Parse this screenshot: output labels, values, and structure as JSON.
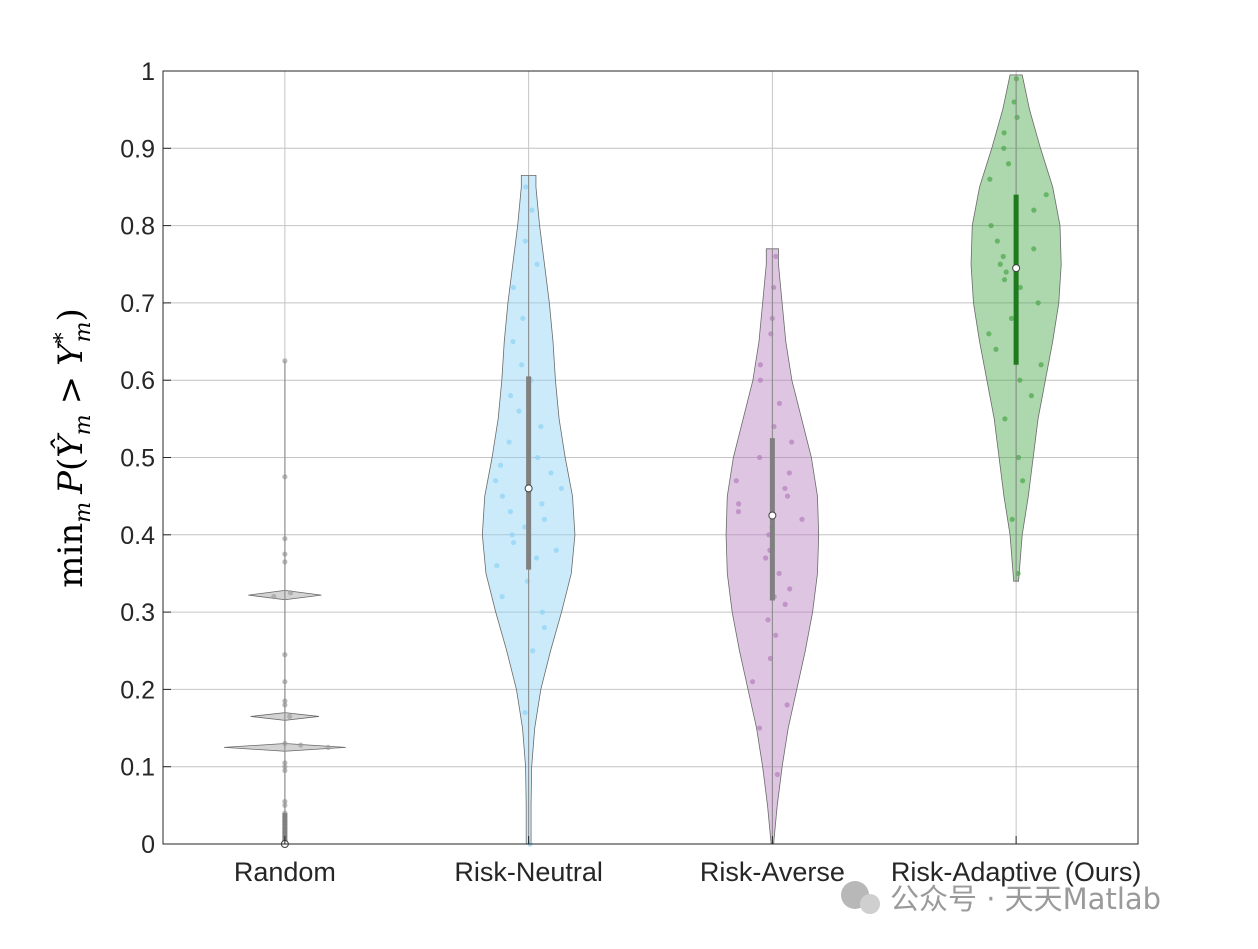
{
  "chart_data": {
    "type": "violin",
    "categories": [
      "Random",
      "Risk-Neutral",
      "Risk-Averse",
      "Risk-Adaptive (Ours)"
    ],
    "ylabel_parts": {
      "min": "min",
      "sub_m": "m",
      "P": "P",
      "open": "(",
      "Yhat": "Ŷ",
      "gt": ">",
      "Y": "Y",
      "star": "*",
      "close": ")"
    },
    "ylim": [
      0,
      1
    ],
    "yticks": [
      "0",
      "0.1",
      "0.2",
      "0.3",
      "0.4",
      "0.5",
      "0.6",
      "0.7",
      "0.8",
      "0.9",
      "1"
    ],
    "grid": true,
    "series": [
      {
        "color": "#9e9e9e",
        "median": 0.0,
        "iqr": [
          0.0,
          0.04
        ],
        "whisker": [
          0.0,
          0.625
        ],
        "density": [
          [
            0.0,
            0.0
          ],
          [
            0.12,
            0.0
          ],
          [
            0.125,
            0.5
          ],
          [
            0.13,
            0.0
          ],
          [
            0.16,
            0.0
          ],
          [
            0.165,
            0.28
          ],
          [
            0.17,
            0.0
          ],
          [
            0.316,
            0.0
          ],
          [
            0.322,
            0.3
          ],
          [
            0.328,
            0.0
          ],
          [
            0.625,
            0.0
          ]
        ],
        "points": [
          0.0,
          0.005,
          0.01,
          0.015,
          0.02,
          0.025,
          0.03,
          0.035,
          0.04,
          0.05,
          0.055,
          0.095,
          0.1,
          0.105,
          0.125,
          0.128,
          0.13,
          0.165,
          0.18,
          0.185,
          0.21,
          0.245,
          0.32,
          0.325,
          0.365,
          0.375,
          0.395,
          0.475,
          0.625
        ]
      },
      {
        "color": "#8dd3f5",
        "median": 0.46,
        "iqr": [
          0.355,
          0.605
        ],
        "whisker": [
          0.0,
          0.865
        ],
        "density": [
          [
            0.0,
            0.02
          ],
          [
            0.05,
            0.02
          ],
          [
            0.1,
            0.025
          ],
          [
            0.15,
            0.05
          ],
          [
            0.2,
            0.1
          ],
          [
            0.25,
            0.18
          ],
          [
            0.3,
            0.27
          ],
          [
            0.35,
            0.35
          ],
          [
            0.4,
            0.38
          ],
          [
            0.45,
            0.36
          ],
          [
            0.5,
            0.3
          ],
          [
            0.55,
            0.25
          ],
          [
            0.6,
            0.22
          ],
          [
            0.65,
            0.2
          ],
          [
            0.7,
            0.17
          ],
          [
            0.75,
            0.13
          ],
          [
            0.8,
            0.09
          ],
          [
            0.85,
            0.06
          ],
          [
            0.865,
            0.06
          ]
        ],
        "points": [
          0.0,
          0.17,
          0.25,
          0.28,
          0.3,
          0.32,
          0.34,
          0.36,
          0.37,
          0.38,
          0.39,
          0.4,
          0.41,
          0.42,
          0.43,
          0.44,
          0.45,
          0.46,
          0.47,
          0.48,
          0.49,
          0.5,
          0.52,
          0.54,
          0.56,
          0.58,
          0.6,
          0.62,
          0.65,
          0.68,
          0.72,
          0.75,
          0.78,
          0.82,
          0.85
        ]
      },
      {
        "color": "#b57fbe",
        "median": 0.425,
        "iqr": [
          0.315,
          0.525
        ],
        "whisker": [
          0.0,
          0.77
        ],
        "density": [
          [
            0.0,
            0.01
          ],
          [
            0.05,
            0.04
          ],
          [
            0.1,
            0.08
          ],
          [
            0.15,
            0.13
          ],
          [
            0.2,
            0.2
          ],
          [
            0.25,
            0.27
          ],
          [
            0.3,
            0.33
          ],
          [
            0.35,
            0.37
          ],
          [
            0.4,
            0.38
          ],
          [
            0.45,
            0.37
          ],
          [
            0.5,
            0.32
          ],
          [
            0.55,
            0.24
          ],
          [
            0.6,
            0.16
          ],
          [
            0.65,
            0.11
          ],
          [
            0.7,
            0.08
          ],
          [
            0.75,
            0.05
          ],
          [
            0.77,
            0.05
          ]
        ],
        "points": [
          0.09,
          0.15,
          0.18,
          0.21,
          0.24,
          0.27,
          0.29,
          0.31,
          0.32,
          0.33,
          0.35,
          0.37,
          0.38,
          0.4,
          0.41,
          0.42,
          0.43,
          0.44,
          0.45,
          0.46,
          0.47,
          0.48,
          0.5,
          0.52,
          0.54,
          0.57,
          0.6,
          0.62,
          0.66,
          0.68,
          0.72,
          0.76
        ]
      },
      {
        "color": "#4aa64a",
        "median": 0.745,
        "iqr": [
          0.62,
          0.84
        ],
        "whisker": [
          0.34,
          0.995
        ],
        "density": [
          [
            0.34,
            0.02
          ],
          [
            0.4,
            0.05
          ],
          [
            0.45,
            0.1
          ],
          [
            0.5,
            0.14
          ],
          [
            0.55,
            0.18
          ],
          [
            0.6,
            0.24
          ],
          [
            0.65,
            0.3
          ],
          [
            0.7,
            0.35
          ],
          [
            0.75,
            0.37
          ],
          [
            0.8,
            0.36
          ],
          [
            0.85,
            0.3
          ],
          [
            0.9,
            0.2
          ],
          [
            0.95,
            0.11
          ],
          [
            0.995,
            0.05
          ]
        ],
        "points": [
          0.35,
          0.42,
          0.47,
          0.5,
          0.55,
          0.58,
          0.6,
          0.62,
          0.64,
          0.66,
          0.68,
          0.7,
          0.72,
          0.73,
          0.74,
          0.75,
          0.76,
          0.77,
          0.78,
          0.8,
          0.82,
          0.84,
          0.86,
          0.88,
          0.9,
          0.92,
          0.94,
          0.96,
          0.99
        ]
      }
    ]
  },
  "watermark": {
    "text": "公众号 · 天天Matlab"
  }
}
